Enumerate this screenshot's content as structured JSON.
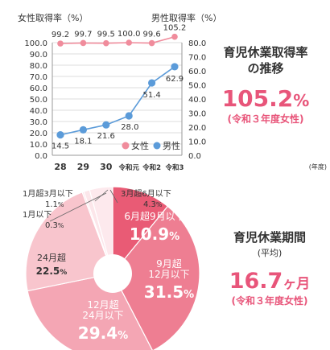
{
  "chart_data": [
    {
      "type": "line",
      "categories": [
        "28",
        "29",
        "30",
        "令和元",
        "令和2",
        "令和3"
      ],
      "x_unit_label": "(年度)",
      "series": [
        {
          "name": "女性",
          "axis": "left",
          "color": "#f08c9c",
          "values": [
            99.2,
            99.7,
            99.5,
            100.0,
            99.6,
            105.2
          ],
          "labels": [
            "99.2",
            "99.7",
            "99.5",
            "100.0",
            "99.6",
            "105.2"
          ]
        },
        {
          "name": "男性",
          "axis": "right",
          "color": "#5b9bd9",
          "values": [
            14.5,
            18.1,
            21.6,
            28.0,
            51.4,
            62.9
          ],
          "labels": [
            "14.5",
            "18.1",
            "21.6",
            "28.0",
            "51.4",
            "62.9"
          ]
        }
      ],
      "left_axis": {
        "title": "女性取得率（%）",
        "ylim": [
          0,
          100
        ],
        "ticks": [
          "0.0",
          "10.0",
          "20.0",
          "30.0",
          "40.0",
          "50.0",
          "60.0",
          "70.0",
          "80.0",
          "90.0",
          "100.0"
        ]
      },
      "right_axis": {
        "title": "男性取得率（%）",
        "ylim": [
          0,
          80
        ],
        "ticks": [
          "0.0",
          "10.0",
          "20.0",
          "30.0",
          "40.0",
          "50.0",
          "60.0",
          "70.0",
          "80.0"
        ]
      },
      "grid": true,
      "legend": "bottom-right"
    },
    {
      "type": "pie",
      "donut": true,
      "slices": [
        {
          "lines": [
            "6月超9月以下"
          ],
          "value_text": "10.9",
          "value": 10.9,
          "color": "#e95b75",
          "placement": "inside"
        },
        {
          "lines": [
            "9月超",
            "12月以下"
          ],
          "value_text": "31.5",
          "value": 31.5,
          "color": "#ee7e92",
          "placement": "inside"
        },
        {
          "lines": [
            "12月超",
            "24月以下"
          ],
          "value_text": "29.4",
          "value": 29.4,
          "color": "#f4a6b4",
          "placement": "inside"
        },
        {
          "lines": [
            "24月超"
          ],
          "value_text": "22.5",
          "value": 22.5,
          "color": "#f8c5cd",
          "placement": "inside"
        },
        {
          "lines": [
            "1月以下"
          ],
          "value_text": "0.3",
          "value": 0.3,
          "color": "#fbdde2",
          "placement": "outside"
        },
        {
          "lines": [
            "1月超3月以下"
          ],
          "value_text": "1.1",
          "value": 1.1,
          "color": "#fce6ea",
          "placement": "outside"
        },
        {
          "lines": [
            "3月超6月以下"
          ],
          "value_text": "4.3",
          "value": 4.3,
          "color": "#fde9ed",
          "placement": "outside"
        }
      ],
      "percent_sign": "%"
    }
  ],
  "summary1": {
    "title_lines": [
      "育児休業取得率",
      "の推移"
    ],
    "value": "105.2",
    "unit": "%",
    "note": "(令和３年度女性)"
  },
  "summary2": {
    "title": "育児休業期間",
    "subtitle": "(平均)",
    "value": "16.7",
    "unit": "ヶ月",
    "note": "(令和３年度女性)"
  },
  "colors": {
    "accent": "#e8557a",
    "grid": "#dddddd"
  }
}
